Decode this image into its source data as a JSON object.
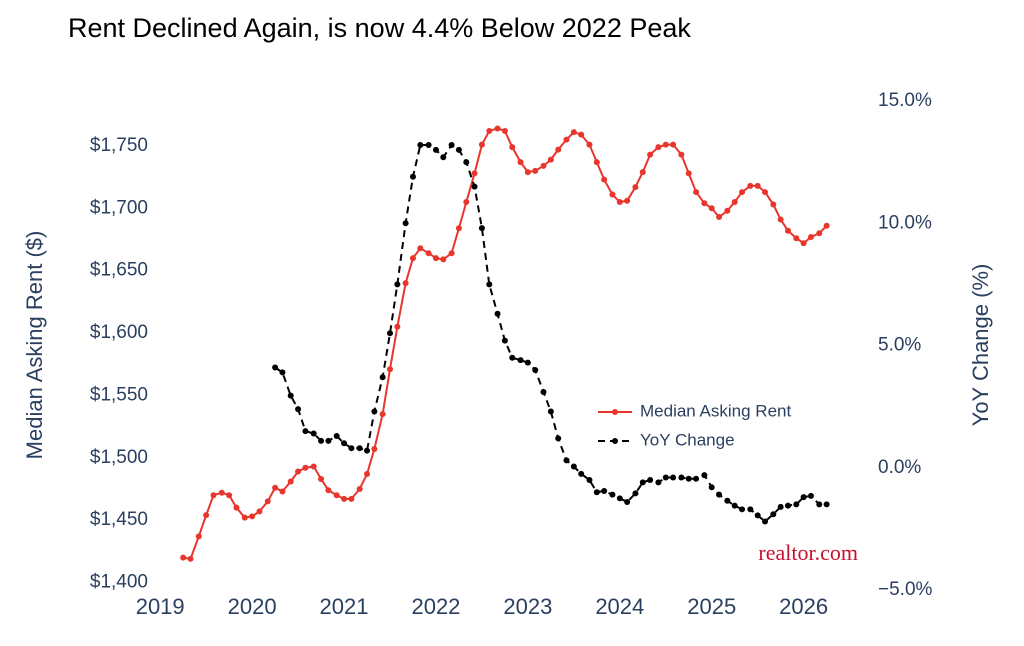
{
  "chart_data": {
    "type": "line",
    "title": "Rent Declined Again, is now 4.4% Below 2022 Peak",
    "y_label": "Median Asking Rent ($)",
    "y2_label": "YoY Change (%)",
    "watermark": "realtor.com",
    "x": [
      2019.25,
      2019.33,
      2019.42,
      2019.5,
      2019.58,
      2019.67,
      2019.75,
      2019.83,
      2019.92,
      2020.0,
      2020.08,
      2020.17,
      2020.25,
      2020.33,
      2020.42,
      2020.5,
      2020.58,
      2020.67,
      2020.75,
      2020.83,
      2020.92,
      2021.0,
      2021.08,
      2021.17,
      2021.25,
      2021.33,
      2021.42,
      2021.5,
      2021.58,
      2021.67,
      2021.75,
      2021.83,
      2021.92,
      2022.0,
      2022.08,
      2022.17,
      2022.25,
      2022.33,
      2022.42,
      2022.5,
      2022.58,
      2022.67,
      2022.75,
      2022.83,
      2022.92,
      2023.0,
      2023.08,
      2023.17,
      2023.25,
      2023.33,
      2023.42,
      2023.5,
      2023.58,
      2023.67,
      2023.75,
      2023.83,
      2023.92,
      2024.0,
      2024.08,
      2024.17,
      2024.25,
      2024.33,
      2024.42,
      2024.5,
      2024.58,
      2024.67,
      2024.75,
      2024.83,
      2024.92,
      2025.0,
      2025.08,
      2025.17,
      2025.25,
      2025.33,
      2025.42,
      2025.5,
      2025.58,
      2025.67,
      2025.75,
      2025.83,
      2025.92,
      2026.0,
      2026.08,
      2026.17,
      2026.25
    ],
    "xlim": [
      2018.9,
      2026.45
    ],
    "xticks": [
      2019,
      2020,
      2021,
      2022,
      2023,
      2024,
      2025,
      2026
    ],
    "ylim": [
      1394,
      1786
    ],
    "yticks": [
      {
        "value": 1400,
        "label": "$1,400"
      },
      {
        "value": 1450,
        "label": "$1,450"
      },
      {
        "value": 1500,
        "label": "$1,500"
      },
      {
        "value": 1550,
        "label": "$1,550"
      },
      {
        "value": 1600,
        "label": "$1,600"
      },
      {
        "value": 1650,
        "label": "$1,650"
      },
      {
        "value": 1700,
        "label": "$1,700"
      },
      {
        "value": 1750,
        "label": "$1,750"
      }
    ],
    "y2lim": [
      -5,
      15
    ],
    "y2ticks": [
      {
        "value": -5,
        "label": "−5.0%"
      },
      {
        "value": 0,
        "label": "0.0%"
      },
      {
        "value": 5,
        "label": "5.0%"
      },
      {
        "value": 10,
        "label": "10.0%"
      },
      {
        "value": 15,
        "label": "15.0%"
      }
    ],
    "series": [
      {
        "name": "Median Asking Rent",
        "color": "#e8362d",
        "dash": false,
        "values": [
          1420,
          1419,
          1437,
          1454,
          1470,
          1472,
          1470,
          1460,
          1452,
          1453,
          1457,
          1465,
          1476,
          1473,
          1481,
          1489,
          1492,
          1493,
          1483,
          1474,
          1470,
          1467,
          1467,
          1475,
          1487,
          1507,
          1535,
          1571,
          1605,
          1640,
          1660,
          1668,
          1664,
          1660,
          1659,
          1664,
          1684,
          1705,
          1728,
          1751,
          1762,
          1764,
          1762,
          1749,
          1737,
          1729,
          1730,
          1734,
          1739,
          1747,
          1755,
          1761,
          1759,
          1751,
          1737,
          1723,
          1711,
          1705,
          1706,
          1717,
          1729,
          1743,
          1749,
          1751,
          1751,
          1743,
          1728,
          1713,
          1704,
          1700,
          1693,
          1698,
          1705,
          1713,
          1718,
          1718,
          1713,
          1703,
          1691,
          1682,
          1676,
          1672,
          1677,
          1680,
          1686
        ]
      },
      {
        "name": "YoY Change",
        "color": "#000000",
        "dash": true,
        "axis": "y2",
        "values": [
          null,
          null,
          null,
          null,
          null,
          null,
          null,
          null,
          null,
          null,
          null,
          null,
          4.1,
          3.9,
          2.95,
          2.4,
          1.5,
          1.4,
          1.1,
          1.1,
          1.3,
          1.0,
          0.8,
          0.8,
          0.7,
          2.3,
          3.7,
          5.5,
          7.5,
          10.0,
          11.9,
          13.2,
          13.2,
          13.0,
          12.7,
          13.2,
          13.0,
          12.5,
          11.5,
          9.8,
          7.5,
          6.3,
          5.2,
          4.5,
          4.4,
          4.3,
          4.0,
          3.1,
          2.3,
          1.2,
          0.3,
          0.05,
          -0.25,
          -0.5,
          -1.0,
          -0.95,
          -1.1,
          -1.25,
          -1.4,
          -1.05,
          -0.6,
          -0.5,
          -0.6,
          -0.4,
          -0.4,
          -0.4,
          -0.45,
          -0.45,
          -0.3,
          -0.8,
          -1.1,
          -1.35,
          -1.55,
          -1.7,
          -1.7,
          -1.95,
          -2.2,
          -1.9,
          -1.6,
          -1.55,
          -1.5,
          -1.2,
          -1.15,
          -1.5,
          -1.5
        ]
      }
    ]
  }
}
